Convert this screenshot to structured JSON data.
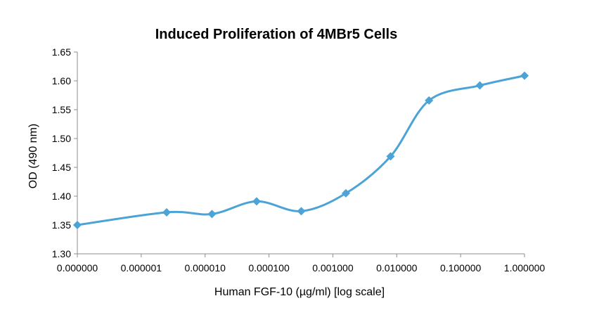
{
  "chart_data": {
    "type": "line",
    "title": "Induced Proliferation of 4MBr5 Cells",
    "xlabel": "Human FGF-10 (µg/ml) [log scale]",
    "ylabel": "OD (490 nm)",
    "x_scale": "log",
    "x_ticks": [
      "0.000000",
      "0.000001",
      "0.000010",
      "0.000100",
      "0.001000",
      "0.010000",
      "0.100000",
      "1.000000"
    ],
    "y_ticks": [
      "1.30",
      "1.35",
      "1.40",
      "1.45",
      "1.50",
      "1.55",
      "1.60",
      "1.65"
    ],
    "ylim": [
      1.3,
      1.65
    ],
    "grid": false,
    "smooth": true,
    "series": [
      {
        "color": "#4BA3D6",
        "marker": "diamond",
        "points": [
          {
            "x": "0.0000001",
            "y": 1.35
          },
          {
            "x": "0.0000025",
            "y": 1.372
          },
          {
            "x": "0.0000128",
            "y": 1.369
          },
          {
            "x": "0.000064",
            "y": 1.391
          },
          {
            "x": "0.00032",
            "y": 1.374
          },
          {
            "x": "0.0016",
            "y": 1.405
          },
          {
            "x": "0.008",
            "y": 1.469
          },
          {
            "x": "0.032",
            "y": 1.566
          },
          {
            "x": "0.2",
            "y": 1.592
          },
          {
            "x": "1.0",
            "y": 1.609
          }
        ]
      }
    ]
  }
}
